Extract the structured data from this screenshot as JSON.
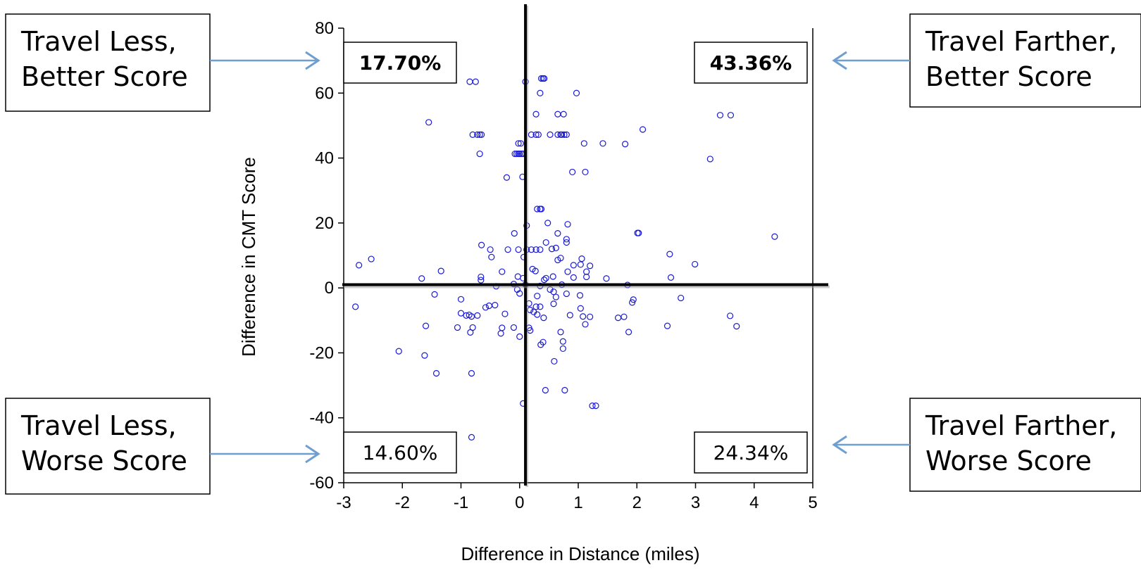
{
  "chart_data": {
    "type": "scatter",
    "title": "",
    "xlabel": "Difference in Distance (miles)",
    "ylabel": "Difference in CMT Score",
    "xlim": [
      -3,
      5
    ],
    "ylim": [
      -60,
      80
    ],
    "x_ticks": [
      "-3",
      "-2",
      "-1",
      "0",
      "1",
      "2",
      "3",
      "4",
      "5"
    ],
    "y_ticks": [
      "-60",
      "-40",
      "-20",
      "0",
      "20",
      "40",
      "60",
      "80"
    ],
    "grid": false,
    "marker_color": "#1a1ad6",
    "quadrant_percentages": {
      "top_left": "17.70%",
      "top_right": "43.36%",
      "bottom_left": "14.60%",
      "bottom_right": "24.34%"
    },
    "callouts": {
      "top_left": [
        "Travel Less,",
        "Better Score"
      ],
      "top_right": [
        "Travel Farther,",
        "Better Score"
      ],
      "bottom_left": [
        "Travel Less,",
        "Worse Score"
      ],
      "bottom_right": [
        "Travel Farther,",
        "Worse Score"
      ]
    },
    "arrow_color": "#6f9fd0",
    "points": [
      [
        -0.85,
        63.5
      ],
      [
        -0.75,
        63.5
      ],
      [
        0.1,
        63.5
      ],
      [
        0.37,
        64.5
      ],
      [
        0.4,
        64.5
      ],
      [
        0.42,
        64.5
      ],
      [
        0.35,
        60
      ],
      [
        0.97,
        60
      ],
      [
        -1.55,
        51
      ],
      [
        0.28,
        53.5
      ],
      [
        0.65,
        53.5
      ],
      [
        0.75,
        53.5
      ],
      [
        3.42,
        53.2
      ],
      [
        3.6,
        53.2
      ],
      [
        -0.8,
        47.2
      ],
      [
        -0.72,
        47.2
      ],
      [
        -0.68,
        47.2
      ],
      [
        -0.65,
        47.2
      ],
      [
        0.2,
        47.2
      ],
      [
        0.28,
        47.2
      ],
      [
        0.32,
        47.2
      ],
      [
        0.52,
        47.2
      ],
      [
        0.65,
        47.2
      ],
      [
        0.7,
        47.2
      ],
      [
        0.72,
        47.2
      ],
      [
        0.76,
        47.2
      ],
      [
        0.8,
        47.2
      ],
      [
        2.1,
        48.8
      ],
      [
        -0.02,
        44.5
      ],
      [
        0.02,
        44.5
      ],
      [
        1.1,
        44.5
      ],
      [
        1.42,
        44.5
      ],
      [
        1.8,
        44.3
      ],
      [
        -0.68,
        41.3
      ],
      [
        -0.08,
        41.3
      ],
      [
        -0.05,
        41.3
      ],
      [
        -0.02,
        41.3
      ],
      [
        0.0,
        41.3
      ],
      [
        0.03,
        41.3
      ],
      [
        0.06,
        41.3
      ],
      [
        3.25,
        39.7
      ],
      [
        -0.22,
        34
      ],
      [
        0.05,
        34.2
      ],
      [
        0.9,
        35.7
      ],
      [
        1.12,
        35.7
      ],
      [
        0.3,
        24.3
      ],
      [
        0.35,
        24.3
      ],
      [
        0.37,
        24.3
      ],
      [
        0.48,
        20
      ],
      [
        0.82,
        19.6
      ],
      [
        0.12,
        19.2
      ],
      [
        -0.09,
        16.8
      ],
      [
        0.65,
        16.8
      ],
      [
        2.01,
        16.9
      ],
      [
        2.03,
        16.9
      ],
      [
        4.35,
        15.8
      ],
      [
        0.45,
        14
      ],
      [
        0.8,
        14
      ],
      [
        0.8,
        15
      ],
      [
        -0.65,
        13.2
      ],
      [
        0.55,
        12
      ],
      [
        0.62,
        12.3
      ],
      [
        -0.5,
        11.8
      ],
      [
        -0.2,
        11.8
      ],
      [
        -0.02,
        11.8
      ],
      [
        0.12,
        11.8
      ],
      [
        0.2,
        11.8
      ],
      [
        0.28,
        11.8
      ],
      [
        0.35,
        11.8
      ],
      [
        -0.48,
        9.5
      ],
      [
        0.07,
        9.5
      ],
      [
        0.65,
        8.6
      ],
      [
        0.7,
        9.2
      ],
      [
        1.06,
        9
      ],
      [
        2.56,
        10.4
      ],
      [
        -2.74,
        7
      ],
      [
        -2.53,
        8.9
      ],
      [
        0.92,
        7
      ],
      [
        1.04,
        7.2
      ],
      [
        1.2,
        6.8
      ],
      [
        2.99,
        7.3
      ],
      [
        -1.34,
        5.2
      ],
      [
        -0.3,
        5
      ],
      [
        0.22,
        5.8
      ],
      [
        0.27,
        5.2
      ],
      [
        0.82,
        5
      ],
      [
        1.14,
        5
      ],
      [
        -0.66,
        3.4
      ],
      [
        -0.66,
        2.4
      ],
      [
        -0.03,
        3.5
      ],
      [
        0.06,
        3
      ],
      [
        0.42,
        2.5
      ],
      [
        0.45,
        3
      ],
      [
        0.57,
        3.5
      ],
      [
        0.92,
        3.2
      ],
      [
        1.14,
        3.4
      ],
      [
        1.48,
        2.9
      ],
      [
        2.58,
        3.2
      ],
      [
        -1.67,
        2.9
      ],
      [
        -0.4,
        0.5
      ],
      [
        -0.1,
        1.2
      ],
      [
        0.1,
        1
      ],
      [
        0.35,
        0.6
      ],
      [
        0.72,
        1
      ],
      [
        1.84,
        0.9
      ],
      [
        -0.04,
        -0.5
      ],
      [
        0.52,
        -0.5
      ],
      [
        0.58,
        -1.2
      ],
      [
        -1.45,
        -2
      ],
      [
        0.0,
        -1.7
      ],
      [
        0.3,
        -2.5
      ],
      [
        0.62,
        -2.8
      ],
      [
        0.8,
        -1.8
      ],
      [
        1.03,
        -2.3
      ],
      [
        2.75,
        -3.1
      ],
      [
        -1.0,
        -3.5
      ],
      [
        0.16,
        -4.8
      ],
      [
        1.94,
        -3.6
      ],
      [
        1.92,
        -4.5
      ],
      [
        -2.8,
        -5.8
      ],
      [
        -0.52,
        -5.5
      ],
      [
        -0.42,
        -5.3
      ],
      [
        -0.58,
        -6
      ],
      [
        0.28,
        -5.8
      ],
      [
        0.35,
        -5.8
      ],
      [
        0.58,
        -4.9
      ],
      [
        1.04,
        -6.3
      ],
      [
        -1.0,
        -7.8
      ],
      [
        -0.91,
        -8.5
      ],
      [
        -0.86,
        -8.3
      ],
      [
        -0.82,
        -8.8
      ],
      [
        -0.72,
        -8.5
      ],
      [
        -0.25,
        -8
      ],
      [
        0.18,
        -6.8
      ],
      [
        0.24,
        -7.4
      ],
      [
        0.3,
        -8.2
      ],
      [
        0.41,
        -9.2
      ],
      [
        0.86,
        -8.4
      ],
      [
        1.08,
        -8.8
      ],
      [
        1.2,
        -8.9
      ],
      [
        1.68,
        -9.2
      ],
      [
        1.78,
        -8.9
      ],
      [
        3.59,
        -8.6
      ],
      [
        -1.6,
        -11.7
      ],
      [
        -1.06,
        -12.2
      ],
      [
        -0.8,
        -12.2
      ],
      [
        -0.3,
        -12.3
      ],
      [
        -0.1,
        -12.2
      ],
      [
        0.16,
        -12.3
      ],
      [
        0.18,
        -13.1
      ],
      [
        1.12,
        -11.2
      ],
      [
        2.52,
        -11.7
      ],
      [
        3.7,
        -11.8
      ],
      [
        -0.84,
        -13.7
      ],
      [
        -0.32,
        -14
      ],
      [
        0.0,
        -15
      ],
      [
        0.7,
        -13.6
      ],
      [
        1.86,
        -13.6
      ],
      [
        0.36,
        -17.5
      ],
      [
        0.4,
        -16.7
      ],
      [
        0.74,
        -16.5
      ],
      [
        0.74,
        -18.7
      ],
      [
        -1.62,
        -20.8
      ],
      [
        -2.06,
        -19.5
      ],
      [
        0.59,
        -22.6
      ],
      [
        -1.42,
        -26.3
      ],
      [
        -0.82,
        -26.3
      ],
      [
        0.44,
        -31.5
      ],
      [
        0.77,
        -31.5
      ],
      [
        0.06,
        -35.6
      ],
      [
        1.24,
        -36.3
      ],
      [
        1.3,
        -36.3
      ],
      [
        -0.82,
        -46
      ]
    ]
  }
}
